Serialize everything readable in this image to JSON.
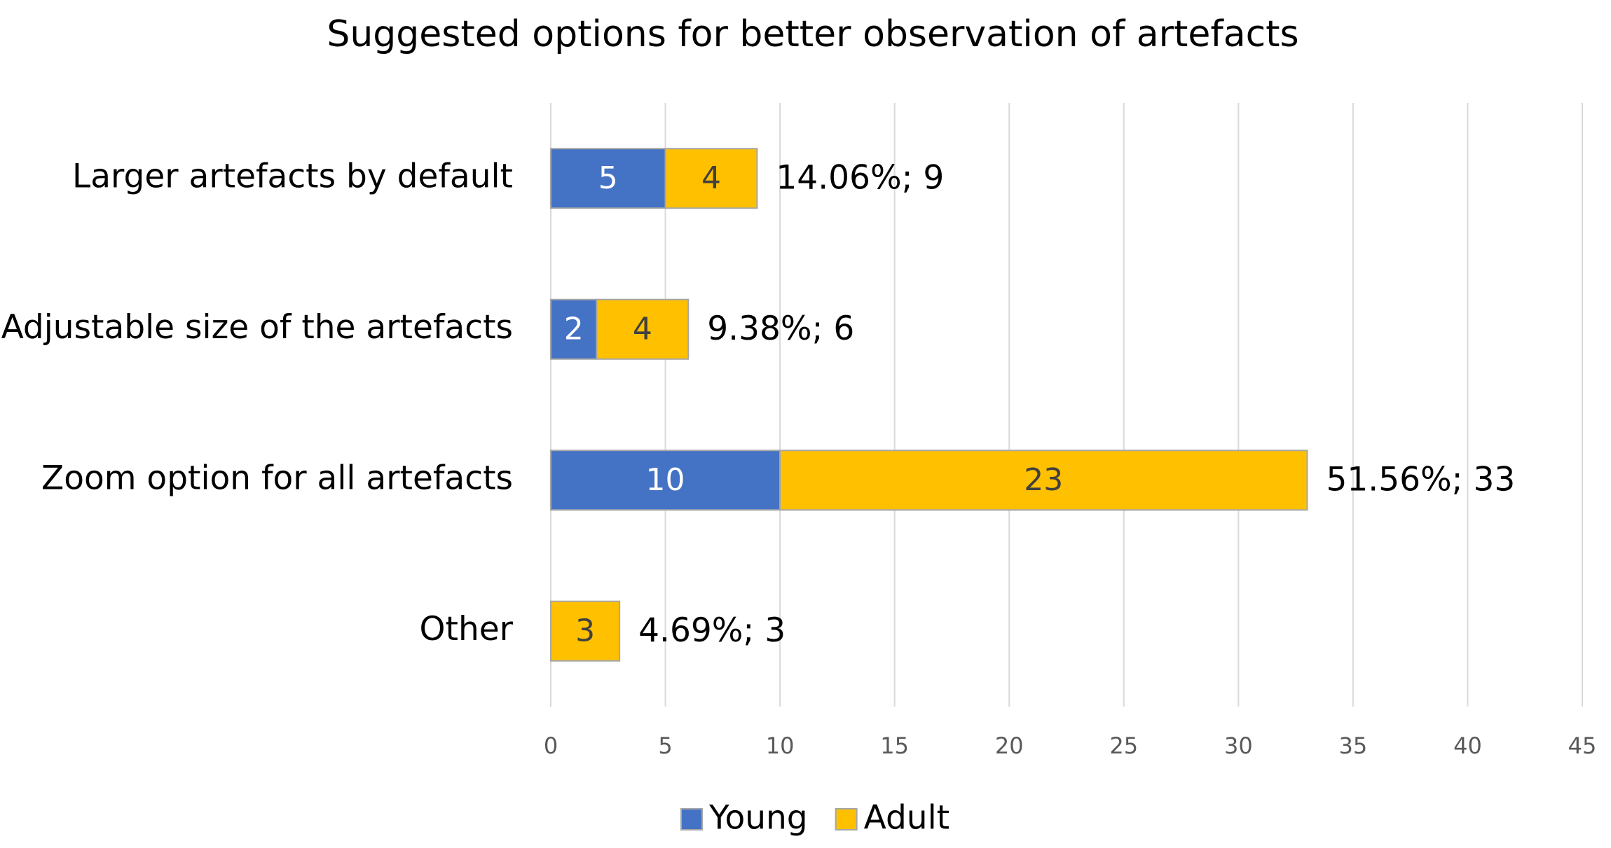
{
  "chart_data": {
    "type": "stacked-bar-horizontal",
    "title": "Suggested options for better observation of artefacts",
    "categories": [
      "Larger artefacts by default",
      "Adjustable size of the artefacts",
      "Zoom option for all artefacts",
      "Other"
    ],
    "series": [
      {
        "name": "Young",
        "color": "#4472c4",
        "label_color": "#ffffff",
        "values": [
          5,
          2,
          10,
          null
        ]
      },
      {
        "name": "Adult",
        "color": "#ffc000",
        "label_color": "#404040",
        "values": [
          4,
          4,
          23,
          3
        ]
      }
    ],
    "total_labels": [
      "14.06%; 9",
      "9.38%; 6",
      "51.56%; 33",
      "4.69%; 3"
    ],
    "xlim": [
      0,
      45
    ],
    "xticks": [
      0,
      5,
      10,
      15,
      20,
      25,
      30,
      35,
      40,
      45
    ],
    "grid": true,
    "legend": "bottom"
  }
}
